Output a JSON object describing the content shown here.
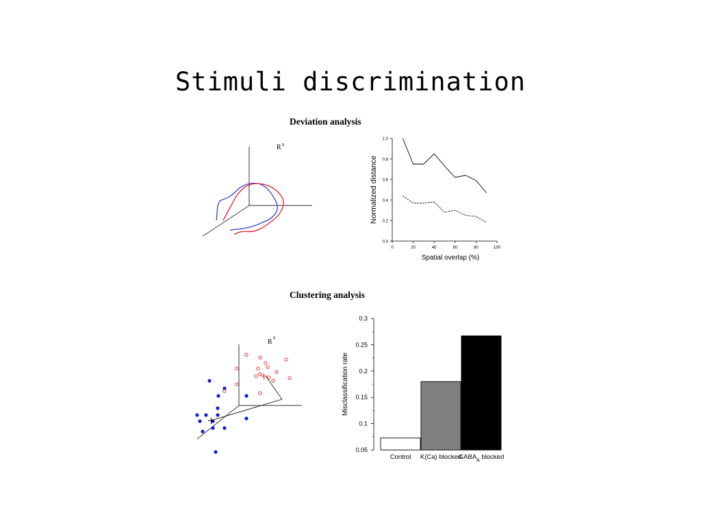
{
  "slide": {
    "title": "Stimuli discrimination"
  },
  "deviation": {
    "title": "Deviation analysis",
    "space_label": "R",
    "space_superscript": "n"
  },
  "clustering": {
    "title": "Clustering analysis",
    "space_label": "R",
    "space_superscript": "n"
  },
  "chart_data": [
    {
      "type": "line",
      "xlabel": "Spatial overlap (%)",
      "ylabel": "Normalized distance",
      "xlim": [
        0,
        100
      ],
      "ylim": [
        0.0,
        1.0
      ],
      "x_ticks": [
        "0",
        "20",
        "40",
        "60",
        "80",
        "100"
      ],
      "y_ticks": [
        "0.0",
        "0.2",
        "0.4",
        "0.6",
        "0.8",
        "1.0"
      ],
      "x": [
        10,
        20,
        30,
        40,
        50,
        60,
        70,
        80,
        90
      ],
      "series": [
        {
          "style": "solid",
          "values": [
            1.0,
            0.75,
            0.75,
            0.85,
            0.73,
            0.62,
            0.64,
            0.59,
            0.47
          ]
        },
        {
          "style": "dashed",
          "values": [
            0.44,
            0.37,
            0.37,
            0.38,
            0.28,
            0.3,
            0.25,
            0.24,
            0.18
          ]
        }
      ]
    },
    {
      "type": "bar",
      "ylabel": "Misclassification rate",
      "ylim": [
        0.05,
        0.3
      ],
      "y_ticks": [
        "0.05",
        "0.1",
        "0.15",
        "0.2",
        "0.25",
        "0.3"
      ],
      "categories": [
        "Control",
        "K(Ca) blocked",
        "GABA blocked"
      ],
      "category_subscript": [
        "",
        "",
        "A"
      ],
      "values": [
        0.073,
        0.18,
        0.267
      ],
      "colors": [
        "#ffffff",
        "#808080",
        "#000000"
      ]
    }
  ]
}
